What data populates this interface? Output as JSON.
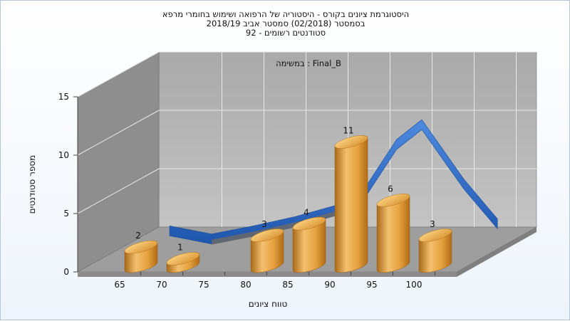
{
  "chart_data": {
    "type": "bar",
    "title_lines": [
      "היסטוגרמת ציונים בקורס - היסטוריה של הרפואה ושימוש בחומרי מרפא",
      "בסמסטר  (02/2018)  סמסטר אביב 2018/19",
      "סטודנטים רשומים - 92"
    ],
    "subtitle": "במשימה : Final_B",
    "xlabel": "טווח ציונים",
    "ylabel": "מספר סטודנטים",
    "ylim": [
      0,
      15
    ],
    "yticks": [
      "0",
      "5",
      "10",
      "15"
    ],
    "xticks": [
      "65",
      "70",
      "75",
      "80",
      "85",
      "90",
      "95",
      "100"
    ],
    "categories": [
      "65",
      "70",
      "75",
      "80",
      "85",
      "90",
      "95",
      "100"
    ],
    "values": [
      2,
      1,
      0,
      3,
      4,
      11,
      6,
      3
    ],
    "bar_labels": [
      "2",
      "1",
      "",
      "3",
      "4",
      "11",
      "6",
      "3"
    ],
    "curve": [
      {
        "x": 65,
        "y": 1.2
      },
      {
        "x": 70,
        "y": 0.5
      },
      {
        "x": 75,
        "y": 1.2
      },
      {
        "x": 80,
        "y": 2.0
      },
      {
        "x": 85,
        "y": 3.0
      },
      {
        "x": 88,
        "y": 4.2
      },
      {
        "x": 92,
        "y": 8.6
      },
      {
        "x": 95,
        "y": 10.3
      },
      {
        "x": 100,
        "y": 5.2
      },
      {
        "x": 104,
        "y": 1.8
      }
    ],
    "grid": true,
    "legend": "none",
    "colors": {
      "bar": "#e8a544",
      "curve": "#2f6cc4",
      "curve_back": "#6a6a6a",
      "back_wall": "#b9b9b9",
      "side_wall": "#8a8a8a",
      "floor": "#9f9f9f"
    }
  }
}
